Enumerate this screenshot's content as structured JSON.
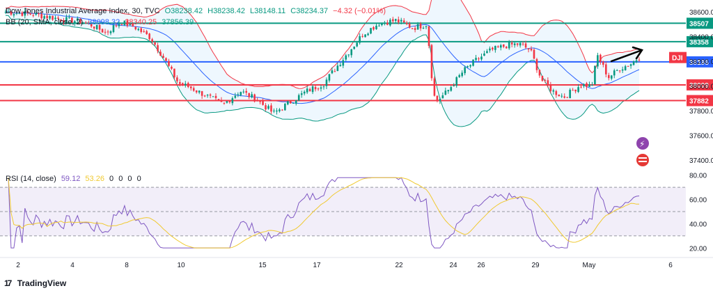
{
  "header": {
    "symbol": "Dow Jones Industrial Average Index, 30, TVC",
    "open": "O38238.42",
    "high": "H38238.42",
    "low": "L38148.11",
    "close": "C38234.37",
    "change": "−4.32 (−0.01%)"
  },
  "bb": {
    "label": "BB (20, SMA, close, 2)",
    "basis": "38098.32",
    "upper": "38340.25",
    "lower": "37856.39"
  },
  "rsi": {
    "label": "RSI (14, close)",
    "value": "59.12",
    "ma": "53.26",
    "extras": [
      "0",
      "0",
      "0",
      "0"
    ]
  },
  "symbol_tag": "DJI",
  "logo_text": "TradingView",
  "colors": {
    "up": "#089981",
    "down": "#f23645",
    "bb_upper": "#f23645",
    "bb_lower": "#089981",
    "bb_basis": "#2962ff",
    "rsi_line": "#7e57c2",
    "rsi_ma": "#f0c930",
    "level_teal": "#089981",
    "level_blue": "#2962ff",
    "level_red": "#f23645"
  },
  "chart_data": [
    {
      "type": "candlestick",
      "title": "Dow Jones Industrial Average Index, 30, TVC",
      "ylim": [
        37300,
        38650
      ],
      "y_ticks": [
        38600,
        38400,
        38200,
        38000,
        37800,
        37600,
        37400
      ],
      "x_ticks": [
        "2",
        "4",
        "8",
        "10",
        "15",
        "17",
        "22",
        "24",
        "26",
        "29",
        "May",
        "6"
      ],
      "horizontal_levels": [
        {
          "label": "38507",
          "value": 38507,
          "color": "teal"
        },
        {
          "label": "38358",
          "value": 38358,
          "color": "teal"
        },
        {
          "label": "38195",
          "value": 38195,
          "color": "blue"
        },
        {
          "label": "38009",
          "value": 38009,
          "color": "red"
        },
        {
          "label": "37882",
          "value": 37882,
          "color": "red"
        }
      ],
      "price_profile": [
        [
          0.0,
          38600
        ],
        [
          0.05,
          38580
        ],
        [
          0.1,
          38540
        ],
        [
          0.135,
          38520
        ],
        [
          0.155,
          38490
        ],
        [
          0.18,
          38430
        ],
        [
          0.205,
          38520
        ],
        [
          0.23,
          38480
        ],
        [
          0.26,
          38390
        ],
        [
          0.28,
          38250
        ],
        [
          0.31,
          38020
        ],
        [
          0.33,
          37990
        ],
        [
          0.36,
          37920
        ],
        [
          0.39,
          37850
        ],
        [
          0.42,
          37960
        ],
        [
          0.45,
          37890
        ],
        [
          0.48,
          37780
        ],
        [
          0.51,
          37870
        ],
        [
          0.54,
          37960
        ],
        [
          0.57,
          38020
        ],
        [
          0.585,
          38110
        ],
        [
          0.61,
          38250
        ],
        [
          0.64,
          38420
        ],
        [
          0.67,
          38510
        ],
        [
          0.7,
          38530
        ],
        [
          0.73,
          38470
        ],
        [
          0.755,
          38500
        ],
        [
          0.765,
          38000
        ],
        [
          0.77,
          37870
        ],
        [
          0.79,
          37950
        ],
        [
          0.82,
          38120
        ],
        [
          0.84,
          38200
        ],
        [
          0.87,
          38290
        ],
        [
          0.9,
          38330
        ],
        [
          0.92,
          38340
        ],
        [
          0.94,
          38290
        ],
        [
          0.96,
          38050
        ],
        [
          0.98,
          37960
        ],
        [
          1.0,
          37910
        ],
        [
          1.03,
          38010
        ],
        [
          1.05,
          38000
        ],
        [
          1.06,
          38250
        ],
        [
          1.08,
          38070
        ],
        [
          1.1,
          38140
        ],
        [
          1.12,
          38180
        ],
        [
          1.135,
          38234
        ]
      ]
    },
    {
      "type": "line",
      "title": "RSI (14, close)",
      "ylim": [
        15,
        85
      ],
      "y_ticks": [
        80,
        60,
        40,
        20
      ],
      "bands": [
        30,
        50,
        70
      ],
      "series": [
        {
          "name": "RSI (14, close)",
          "last": 59.12
        },
        {
          "name": "MA",
          "last": 53.26
        }
      ]
    }
  ]
}
